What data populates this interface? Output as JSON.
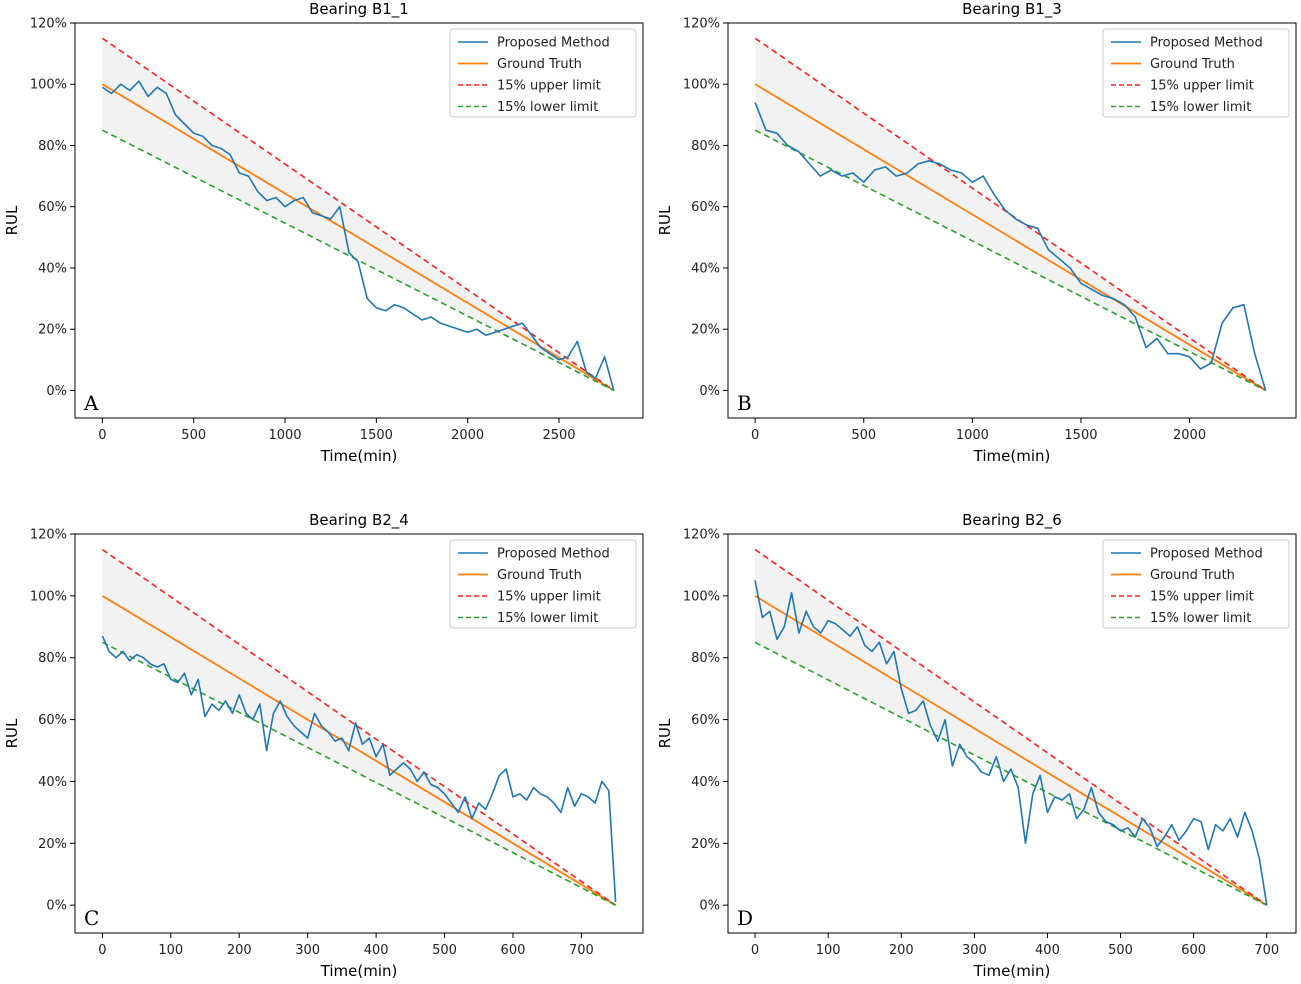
{
  "colors": {
    "predicted": "#1f77b4",
    "ground_truth": "#ff7f0e",
    "upper": "#ff2020",
    "lower": "#2ca02c",
    "band": "#d9d9d9"
  },
  "chart_data": [
    {
      "type": "line",
      "title": "Bearing B1_1",
      "panel_letter": "A",
      "xlabel": "Time(min)",
      "ylabel": "RUL",
      "xlim": [
        -150,
        2960
      ],
      "ylim": [
        -9,
        120
      ],
      "xticks": [
        0,
        500,
        1000,
        1500,
        2000,
        2500
      ],
      "xtick_labels": [
        "0",
        "500",
        "1000",
        "1500",
        "2000",
        "2500"
      ],
      "yticks": [
        0,
        20,
        40,
        60,
        80,
        100,
        120
      ],
      "ytick_labels": [
        "0%",
        "20%",
        "40%",
        "60%",
        "80%",
        "100%",
        "120%"
      ],
      "t_end": 2800,
      "legend": [
        "Proposed Method",
        "Ground Truth",
        "15% upper limit",
        "15% lower limit"
      ],
      "series": [
        {
          "name": "Proposed Method",
          "x": [
            0,
            50,
            100,
            150,
            200,
            250,
            300,
            350,
            400,
            450,
            500,
            550,
            600,
            650,
            700,
            750,
            800,
            850,
            900,
            950,
            1000,
            1050,
            1100,
            1150,
            1200,
            1250,
            1300,
            1350,
            1400,
            1450,
            1500,
            1550,
            1600,
            1650,
            1700,
            1750,
            1800,
            1850,
            1900,
            1950,
            2000,
            2050,
            2100,
            2150,
            2200,
            2250,
            2300,
            2350,
            2400,
            2450,
            2500,
            2550,
            2600,
            2650,
            2700,
            2750,
            2800
          ],
          "values": [
            99,
            97,
            100,
            98,
            101,
            96,
            99,
            97,
            90,
            87,
            84,
            83,
            80,
            79,
            77,
            71,
            70,
            65,
            62,
            63,
            60,
            62,
            63,
            58,
            57,
            56,
            60,
            45,
            42,
            30,
            27,
            26,
            28,
            27,
            25,
            23,
            24,
            22,
            21,
            20,
            19,
            20,
            18,
            19,
            20,
            21,
            22,
            18,
            14,
            12,
            10,
            11,
            16,
            6,
            4,
            11,
            0
          ]
        },
        {
          "name": "Ground Truth",
          "x": [
            0,
            2800
          ],
          "values": [
            100,
            0
          ]
        },
        {
          "name": "15% upper limit",
          "x": [
            0,
            2800
          ],
          "values": [
            115,
            0
          ]
        },
        {
          "name": "15% lower limit",
          "x": [
            0,
            2800
          ],
          "values": [
            85,
            0
          ]
        }
      ]
    },
    {
      "type": "line",
      "title": "Bearing B1_3",
      "panel_letter": "B",
      "xlabel": "Time(min)",
      "ylabel": "RUL",
      "xlim": [
        -125,
        2490
      ],
      "ylim": [
        -9,
        120
      ],
      "xticks": [
        0,
        500,
        1000,
        1500,
        2000
      ],
      "xtick_labels": [
        "0",
        "500",
        "1000",
        "1500",
        "2000"
      ],
      "yticks": [
        0,
        20,
        40,
        60,
        80,
        100,
        120
      ],
      "ytick_labels": [
        "0%",
        "20%",
        "40%",
        "60%",
        "80%",
        "100%",
        "120%"
      ],
      "t_end": 2350,
      "legend": [
        "Proposed Method",
        "Ground Truth",
        "15% upper limit",
        "15% lower limit"
      ],
      "series": [
        {
          "name": "Proposed Method",
          "x": [
            0,
            50,
            100,
            150,
            200,
            250,
            300,
            350,
            400,
            450,
            500,
            550,
            600,
            650,
            700,
            750,
            800,
            850,
            900,
            950,
            1000,
            1050,
            1100,
            1150,
            1200,
            1250,
            1300,
            1350,
            1400,
            1450,
            1500,
            1550,
            1600,
            1650,
            1700,
            1750,
            1800,
            1850,
            1900,
            1950,
            2000,
            2050,
            2100,
            2150,
            2200,
            2250,
            2300,
            2350
          ],
          "values": [
            94,
            85,
            84,
            80,
            78,
            74,
            70,
            72,
            70,
            71,
            68,
            72,
            73,
            70,
            71,
            74,
            75,
            74,
            72,
            71,
            68,
            70,
            64,
            59,
            56,
            54,
            53,
            46,
            43,
            40,
            35,
            33,
            31,
            30,
            28,
            24,
            14,
            17,
            12,
            12,
            11,
            7,
            9,
            22,
            27,
            28,
            12,
            0
          ]
        },
        {
          "name": "Ground Truth",
          "x": [
            0,
            2350
          ],
          "values": [
            100,
            0
          ]
        },
        {
          "name": "15% upper limit",
          "x": [
            0,
            2350
          ],
          "values": [
            115,
            0
          ]
        },
        {
          "name": "15% lower limit",
          "x": [
            0,
            2350
          ],
          "values": [
            85,
            0
          ]
        }
      ]
    },
    {
      "type": "line",
      "title": "Bearing B2_4",
      "panel_letter": "C",
      "xlabel": "Time(min)",
      "ylabel": "RUL",
      "xlim": [
        -40,
        790
      ],
      "ylim": [
        -9,
        120
      ],
      "xticks": [
        0,
        100,
        200,
        300,
        400,
        500,
        600,
        700
      ],
      "xtick_labels": [
        "0",
        "100",
        "200",
        "300",
        "400",
        "500",
        "600",
        "700"
      ],
      "yticks": [
        0,
        20,
        40,
        60,
        80,
        100,
        120
      ],
      "ytick_labels": [
        "0%",
        "20%",
        "40%",
        "60%",
        "80%",
        "100%",
        "120%"
      ],
      "t_end": 750,
      "legend": [
        "Proposed Method",
        "Ground Truth",
        "15% upper limit",
        "15% lower limit"
      ],
      "series": [
        {
          "name": "Proposed Method",
          "x": [
            0,
            10,
            20,
            30,
            40,
            50,
            60,
            70,
            80,
            90,
            100,
            110,
            120,
            130,
            140,
            150,
            160,
            170,
            180,
            190,
            200,
            210,
            220,
            230,
            240,
            250,
            260,
            270,
            280,
            290,
            300,
            310,
            320,
            330,
            340,
            350,
            360,
            370,
            380,
            390,
            400,
            410,
            420,
            430,
            440,
            450,
            460,
            470,
            480,
            490,
            500,
            510,
            520,
            530,
            540,
            550,
            560,
            570,
            580,
            590,
            600,
            610,
            620,
            630,
            640,
            650,
            660,
            670,
            680,
            690,
            700,
            710,
            720,
            730,
            740,
            750
          ],
          "values": [
            87,
            82,
            80,
            82,
            79,
            81,
            80,
            78,
            77,
            78,
            73,
            72,
            75,
            68,
            73,
            61,
            65,
            63,
            66,
            62,
            68,
            62,
            60,
            65,
            50,
            62,
            66,
            61,
            58,
            56,
            54,
            62,
            58,
            56,
            53,
            54,
            50,
            59,
            52,
            54,
            48,
            52,
            42,
            44,
            46,
            44,
            40,
            43,
            39,
            38,
            36,
            33,
            30,
            35,
            28,
            33,
            31,
            36,
            42,
            44,
            35,
            36,
            34,
            38,
            36,
            35,
            33,
            30,
            38,
            32,
            36,
            35,
            33,
            40,
            37,
            1
          ]
        },
        {
          "name": "Ground Truth",
          "x": [
            0,
            750
          ],
          "values": [
            100,
            0
          ]
        },
        {
          "name": "15% upper limit",
          "x": [
            0,
            750
          ],
          "values": [
            115,
            0
          ]
        },
        {
          "name": "15% lower limit",
          "x": [
            0,
            750
          ],
          "values": [
            85,
            0
          ]
        }
      ]
    },
    {
      "type": "line",
      "title": "Bearing B2_6",
      "panel_letter": "D",
      "xlabel": "Time(min)",
      "ylabel": "RUL",
      "xlim": [
        -37,
        740
      ],
      "ylim": [
        -9,
        120
      ],
      "xticks": [
        0,
        100,
        200,
        300,
        400,
        500,
        600,
        700
      ],
      "xtick_labels": [
        "0",
        "100",
        "200",
        "300",
        "400",
        "500",
        "600",
        "700"
      ],
      "yticks": [
        0,
        20,
        40,
        60,
        80,
        100,
        120
      ],
      "ytick_labels": [
        "0%",
        "20%",
        "40%",
        "60%",
        "80%",
        "100%",
        "120%"
      ],
      "t_end": 700,
      "legend": [
        "Proposed Method",
        "Ground Truth",
        "15% upper limit",
        "15% lower limit"
      ],
      "series": [
        {
          "name": "Proposed Method",
          "x": [
            0,
            10,
            20,
            30,
            40,
            50,
            60,
            70,
            80,
            90,
            100,
            110,
            120,
            130,
            140,
            150,
            160,
            170,
            180,
            190,
            200,
            210,
            220,
            230,
            240,
            250,
            260,
            270,
            280,
            290,
            300,
            310,
            320,
            330,
            340,
            350,
            360,
            370,
            380,
            390,
            400,
            410,
            420,
            430,
            440,
            450,
            460,
            470,
            480,
            490,
            500,
            510,
            520,
            530,
            540,
            550,
            560,
            570,
            580,
            590,
            600,
            610,
            620,
            630,
            640,
            650,
            660,
            670,
            680,
            690,
            700
          ],
          "values": [
            105,
            93,
            95,
            86,
            90,
            101,
            88,
            95,
            90,
            88,
            92,
            91,
            89,
            87,
            90,
            84,
            82,
            85,
            78,
            82,
            70,
            62,
            63,
            66,
            58,
            53,
            60,
            45,
            52,
            48,
            46,
            43,
            42,
            48,
            40,
            44,
            38,
            20,
            36,
            42,
            30,
            35,
            34,
            36,
            28,
            31,
            38,
            30,
            27,
            26,
            24,
            25,
            22,
            28,
            25,
            19,
            22,
            26,
            21,
            24,
            28,
            27,
            18,
            26,
            24,
            28,
            22,
            30,
            24,
            15,
            0
          ]
        },
        {
          "name": "Ground Truth",
          "x": [
            0,
            700
          ],
          "values": [
            100,
            0
          ]
        },
        {
          "name": "15% upper limit",
          "x": [
            0,
            700
          ],
          "values": [
            115,
            0
          ]
        },
        {
          "name": "15% lower limit",
          "x": [
            0,
            700
          ],
          "values": [
            85,
            0
          ]
        }
      ]
    }
  ]
}
